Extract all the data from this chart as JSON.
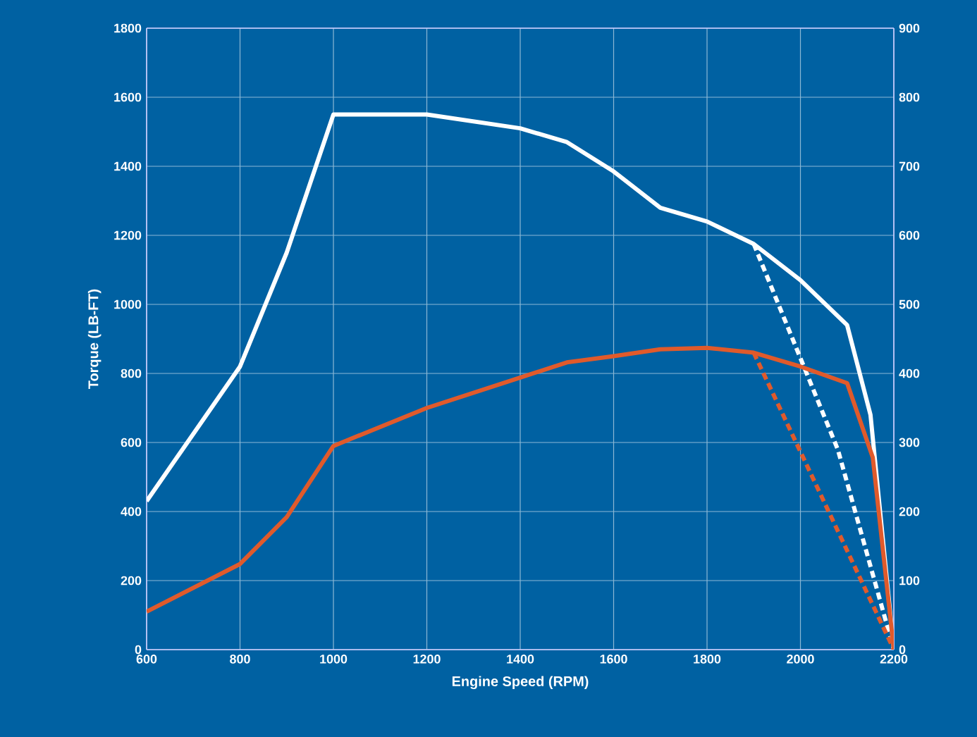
{
  "chart_data": {
    "type": "line",
    "xlabel": "Engine Speed (RPM)",
    "ylabel": "Torque (LB-FT)",
    "xlim": [
      600,
      2200
    ],
    "xticks": [
      600,
      800,
      1000,
      1200,
      1400,
      1600,
      1800,
      2000,
      2200
    ],
    "ylim": [
      0,
      1800
    ],
    "yticks": [
      0,
      200,
      400,
      600,
      800,
      1000,
      1200,
      1400,
      1600,
      1800
    ],
    "y2lim": [
      0,
      900
    ],
    "y2ticks": [
      0,
      100,
      200,
      300,
      400,
      500,
      600,
      700,
      800,
      900
    ],
    "grid": true,
    "marker": "none",
    "series": [
      {
        "color": "#ffffff",
        "line_style": "solid",
        "x": [
          600,
          800,
          900,
          1000,
          1200,
          1400,
          1500,
          1600,
          1700,
          1800,
          1900,
          2000,
          2100,
          2150,
          2200
        ],
        "values": [
          430,
          820,
          1150,
          1550,
          1550,
          1510,
          1470,
          1385,
          1280,
          1240,
          1175,
          1070,
          940,
          680,
          0
        ]
      },
      {
        "color": "#ffffff",
        "line_style": "dashed",
        "x": [
          1900,
          2080,
          2200
        ],
        "values": [
          1175,
          580,
          0
        ]
      },
      {
        "color": "#e05a2b",
        "line_style": "solid",
        "axis": "y2",
        "x": [
          600,
          800,
          900,
          1000,
          1200,
          1400,
          1500,
          1600,
          1700,
          1800,
          1900,
          2000,
          2100,
          2155,
          2200
        ],
        "values": [
          55,
          124,
          192,
          295,
          350,
          394,
          416,
          425,
          435,
          437,
          430,
          410,
          386,
          278,
          0
        ]
      },
      {
        "color": "#e05a2b",
        "line_style": "dashed",
        "axis": "y2",
        "x": [
          1900,
          2200
        ],
        "values": [
          430,
          0
        ]
      }
    ]
  }
}
